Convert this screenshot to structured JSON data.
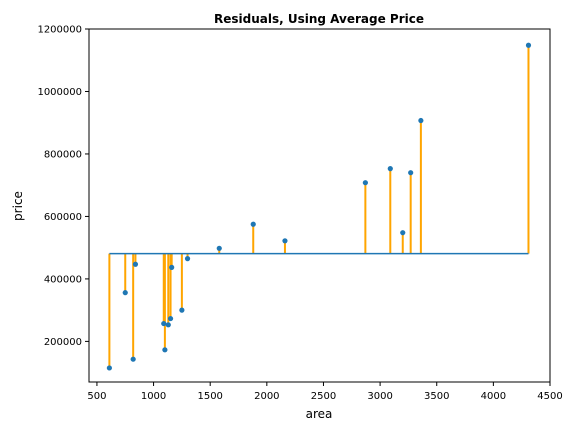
{
  "chart_data": {
    "type": "scatter",
    "title": "Residuals, Using Average Price",
    "xlabel": "area",
    "ylabel": "price",
    "xlim": [
      430,
      4500
    ],
    "ylim": [
      70000,
      1200000
    ],
    "x_ticks": [
      500,
      1000,
      1500,
      2000,
      2500,
      3000,
      3500,
      4000,
      4500
    ],
    "y_ticks": [
      200000,
      400000,
      600000,
      800000,
      1000000,
      1200000
    ],
    "grid": false,
    "legend": "none",
    "colors": {
      "points": "#1f77b4",
      "mean_line": "#1f77b4",
      "residuals": "#ffa500"
    },
    "mean_price": 481000,
    "points": [
      {
        "x": 610,
        "y": 115000
      },
      {
        "x": 750,
        "y": 356000
      },
      {
        "x": 820,
        "y": 143000
      },
      {
        "x": 840,
        "y": 447000
      },
      {
        "x": 1090,
        "y": 257000
      },
      {
        "x": 1100,
        "y": 173000
      },
      {
        "x": 1130,
        "y": 253000
      },
      {
        "x": 1150,
        "y": 273000
      },
      {
        "x": 1160,
        "y": 437000
      },
      {
        "x": 1250,
        "y": 300000
      },
      {
        "x": 1300,
        "y": 465000
      },
      {
        "x": 1580,
        "y": 498000
      },
      {
        "x": 1880,
        "y": 575000
      },
      {
        "x": 2160,
        "y": 522000
      },
      {
        "x": 2870,
        "y": 708000
      },
      {
        "x": 3090,
        "y": 753000
      },
      {
        "x": 3200,
        "y": 548000
      },
      {
        "x": 3270,
        "y": 740000
      },
      {
        "x": 3360,
        "y": 907000
      },
      {
        "x": 4310,
        "y": 1148000
      }
    ]
  }
}
